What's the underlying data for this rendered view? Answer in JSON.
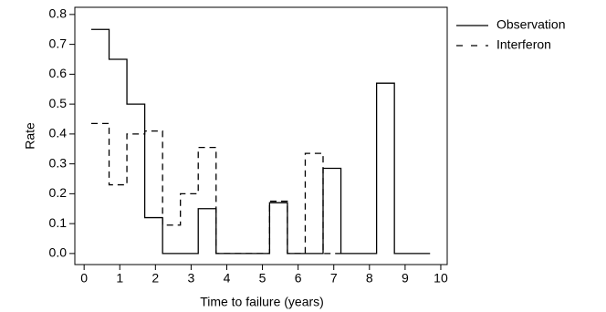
{
  "chart_data": {
    "type": "step",
    "x_label": "Time to failure (years)",
    "y_label": "Rate",
    "x": [
      0.2,
      0.7,
      1.2,
      1.7,
      2.2,
      2.7,
      3.2,
      3.7,
      4.2,
      4.7,
      5.2,
      5.7,
      6.2,
      6.7,
      7.2,
      7.7,
      8.2,
      8.7,
      9.2,
      9.7
    ],
    "series": [
      {
        "name": "Observation",
        "color": "#000000",
        "dash": false,
        "values": [
          0.75,
          0.65,
          0.5,
          0.12,
          0,
          0,
          0.15,
          0,
          0,
          0,
          0.17,
          0,
          0,
          0.285,
          0,
          0,
          0.57,
          0,
          0,
          0
        ]
      },
      {
        "name": "Interferon",
        "color": "#000000",
        "dash": true,
        "values": [
          0.435,
          0.23,
          0.4,
          0.41,
          0.095,
          0.2,
          0.355,
          0,
          0,
          0,
          0.175,
          0,
          0.335,
          0,
          0,
          null,
          null,
          null,
          null,
          null
        ]
      }
    ],
    "xlim": [
      -0.26,
      10.18
    ],
    "ylim": [
      -0.037,
      0.824
    ],
    "xticks": [
      0,
      1,
      2,
      3,
      4,
      5,
      6,
      7,
      8,
      9,
      10
    ],
    "yticks": [
      {
        "value": 0,
        "label": "0.0"
      },
      0.1,
      0.2,
      0.3,
      0.4,
      0.5,
      0.6,
      0.7,
      0.8
    ],
    "legend": "outside-right"
  }
}
